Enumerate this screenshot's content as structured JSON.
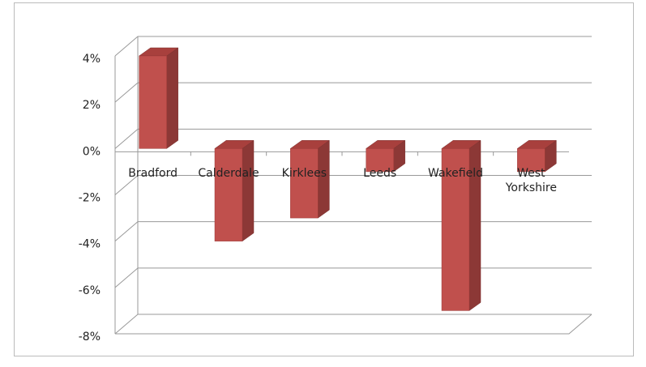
{
  "chart_data": {
    "type": "bar3d",
    "categories": [
      "Bradford",
      "Calderdale",
      "Kirklees",
      "Leeds",
      "Wakefield",
      "West Yorkshire"
    ],
    "values": [
      4,
      -4,
      -3,
      -1,
      -7,
      -1
    ],
    "color": "#c0504d",
    "ylim": [
      -8,
      4
    ],
    "yticks": [
      {
        "value": 4,
        "label": "4%"
      },
      {
        "value": 2,
        "label": "2%"
      },
      {
        "value": 0,
        "label": "0%"
      },
      {
        "value": -2,
        "label": "-2%"
      },
      {
        "value": -4,
        "label": "-4%"
      },
      {
        "value": -6,
        "label": "-6%"
      },
      {
        "value": -8,
        "label": "-8%"
      }
    ],
    "grid": true
  }
}
